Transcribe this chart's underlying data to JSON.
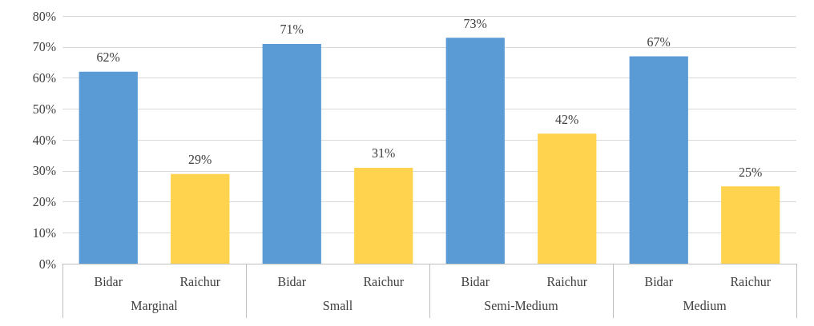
{
  "chart_data": {
    "type": "bar",
    "categories": [
      "Bidar",
      "Raichur",
      "Bidar",
      "Raichur",
      "Bidar",
      "Raichur",
      "Bidar",
      "Raichur"
    ],
    "values": [
      62,
      29,
      71,
      31,
      73,
      42,
      67,
      25
    ],
    "colors": [
      "#5b9bd5",
      "#ffd34e",
      "#5b9bd5",
      "#ffd34e",
      "#5b9bd5",
      "#ffd34e",
      "#5b9bd5",
      "#ffd34e"
    ],
    "value_labels": [
      "62%",
      "29%",
      "71%",
      "31%",
      "73%",
      "42%",
      "67%",
      "25%"
    ],
    "ylim": [
      0,
      80
    ],
    "yticks": [
      {
        "value": 0,
        "label": "0%"
      },
      {
        "value": 10,
        "label": "10%"
      },
      {
        "value": 20,
        "label": "20%"
      },
      {
        "value": 30,
        "label": "30%"
      },
      {
        "value": 40,
        "label": "40%"
      },
      {
        "value": 50,
        "label": "50%"
      },
      {
        "value": 60,
        "label": "60%"
      },
      {
        "value": 70,
        "label": "70%"
      },
      {
        "value": 80,
        "label": "80%"
      }
    ],
    "grid": "y",
    "annotations": [
      "Marginal",
      "Small",
      "Semi-Medium",
      "Medium"
    ]
  }
}
